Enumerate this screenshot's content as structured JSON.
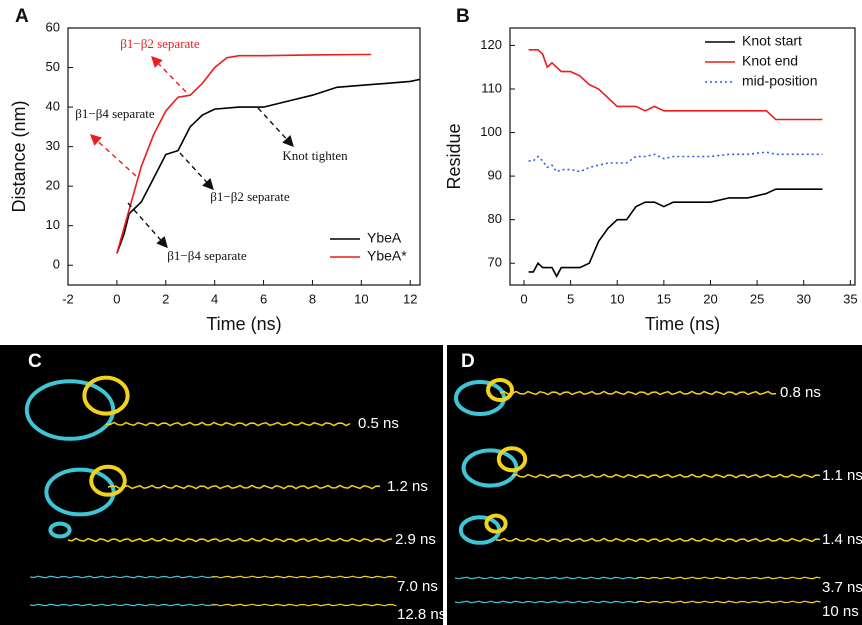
{
  "chart_data": [
    {
      "type": "line",
      "panel": "A",
      "x_label": "Time (ns)",
      "y_label": "Distance (nm)",
      "xlim": [
        -2,
        12.4
      ],
      "ylim": [
        -5,
        60
      ],
      "xticks": [
        -2,
        0,
        2,
        4,
        6,
        8,
        10,
        12
      ],
      "yticks": [
        0,
        10,
        20,
        30,
        40,
        50,
        60
      ],
      "legend": "lower right",
      "annotations": [
        "β1−β2 separate",
        "β1−β4 separate",
        "Knot tighten",
        "β1−β2 separate",
        "β1−β4 separate"
      ],
      "series": [
        {
          "name": "YbeA",
          "color": "#000000",
          "x": [
            0,
            0.3,
            0.5,
            1,
            1.5,
            2,
            2.5,
            3,
            3.5,
            4,
            5,
            6,
            7,
            8,
            9,
            10,
            11,
            12,
            12.4
          ],
          "values": [
            3,
            8,
            13,
            16,
            22,
            28,
            29,
            35,
            38,
            39.5,
            40,
            40,
            41.5,
            43,
            45,
            45.5,
            46,
            46.5,
            47
          ]
        },
        {
          "name": "YbeA*",
          "color": "#ee1c1c",
          "x": [
            0,
            0.5,
            1,
            1.5,
            2,
            2.5,
            3,
            3.5,
            4,
            4.5,
            5,
            6,
            8,
            10,
            10.4
          ],
          "values": [
            3,
            14,
            25,
            33,
            39,
            42.5,
            43,
            46,
            50,
            52.5,
            53,
            53,
            53.2,
            53.3,
            53.3
          ]
        }
      ]
    },
    {
      "type": "line",
      "panel": "B",
      "x_label": "Time (ns)",
      "y_label": "Residue",
      "xlim": [
        -1.5,
        35.5
      ],
      "ylim": [
        65,
        124
      ],
      "xticks": [
        0,
        5,
        10,
        15,
        20,
        25,
        30,
        35
      ],
      "yticks": [
        70,
        80,
        90,
        100,
        110,
        120
      ],
      "legend": "upper right",
      "x": [
        0.5,
        1,
        1.5,
        2,
        2.5,
        3,
        3.5,
        4,
        5,
        6,
        7,
        8,
        9,
        10,
        11,
        12,
        13,
        14,
        15,
        16,
        18,
        20,
        22,
        24,
        26,
        27,
        28,
        30,
        31,
        32
      ],
      "series": [
        {
          "name": "Knot start",
          "color": "#000000",
          "dash": "solid",
          "values": [
            68,
            68,
            70,
            69,
            69,
            69,
            67,
            69,
            69,
            69,
            70,
            75,
            78,
            80,
            80,
            83,
            84,
            84,
            83,
            84,
            84,
            84,
            85,
            85,
            86,
            87,
            87,
            87,
            87,
            87
          ]
        },
        {
          "name": "Knot end",
          "color": "#ee1c1c",
          "dash": "solid",
          "values": [
            119,
            119,
            119,
            118,
            115,
            116,
            115,
            114,
            114,
            113,
            111,
            110,
            108,
            106,
            106,
            106,
            105,
            106,
            105,
            105,
            105,
            105,
            105,
            105,
            105,
            103,
            103,
            103,
            103,
            103
          ]
        },
        {
          "name": "mid-position",
          "color": "#2b5fe0",
          "dash": "dotted",
          "values": [
            93.5,
            93.5,
            94.5,
            93.5,
            92,
            92.5,
            91,
            91.5,
            91.5,
            91,
            92,
            92.5,
            93,
            93,
            93,
            94.5,
            94.5,
            95,
            94,
            94.5,
            94.5,
            94.5,
            95,
            95,
            95.5,
            95,
            95,
            95,
            95,
            95
          ]
        }
      ]
    }
  ],
  "images": [
    {
      "label": "C",
      "times": [
        "0.5 ns",
        "1.2 ns",
        "2.9 ns",
        "7.0 ns",
        "12.8 ns"
      ]
    },
    {
      "label": "D",
      "times": [
        "0.8 ns",
        "1.1 ns",
        "1.4 ns",
        "3.7 ns",
        "10 ns"
      ]
    }
  ]
}
